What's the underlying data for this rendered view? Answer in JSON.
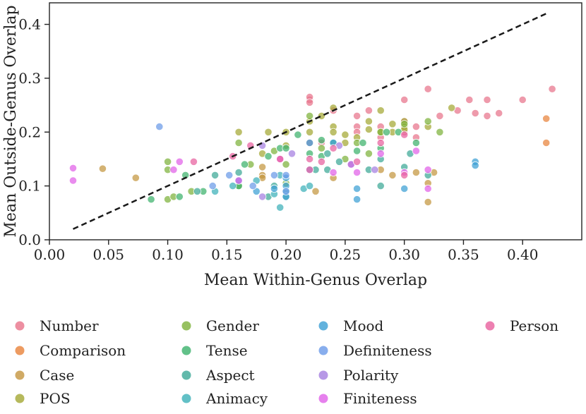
{
  "chart_data": {
    "type": "scatter",
    "title": "",
    "xlabel": "Mean Within-Genus Overlap",
    "ylabel": "Mean Outside-Genus Overlap",
    "xlim": [
      0.0,
      0.45
    ],
    "ylim": [
      0.0,
      0.44
    ],
    "xticks": [
      0.0,
      0.05,
      0.1,
      0.15,
      0.2,
      0.25,
      0.3,
      0.35,
      0.4
    ],
    "xtick_labels": [
      "0.00",
      "0.05",
      "0.10",
      "0.15",
      "0.20",
      "0.25",
      "0.30",
      "0.35",
      "0.40"
    ],
    "yticks": [
      0.0,
      0.1,
      0.2,
      0.3,
      0.4
    ],
    "ytick_labels": [
      "0.0",
      "0.1",
      "0.2",
      "0.3",
      "0.4"
    ],
    "grid": false,
    "reference_line": {
      "name": "y = x",
      "style": "dashed",
      "x": [
        0.02,
        0.42
      ],
      "y": [
        0.02,
        0.42
      ]
    },
    "legend_position": "below",
    "series": [
      {
        "name": "Number",
        "color": "#e8738a",
        "points": [
          [
            0.22,
            0.26
          ],
          [
            0.22,
            0.265
          ],
          [
            0.22,
            0.255
          ],
          [
            0.24,
            0.24
          ],
          [
            0.3,
            0.26
          ],
          [
            0.32,
            0.28
          ],
          [
            0.355,
            0.26
          ],
          [
            0.37,
            0.26
          ],
          [
            0.4,
            0.26
          ],
          [
            0.425,
            0.28
          ],
          [
            0.31,
            0.21
          ],
          [
            0.33,
            0.23
          ],
          [
            0.345,
            0.24
          ],
          [
            0.36,
            0.235
          ],
          [
            0.37,
            0.23
          ],
          [
            0.38,
            0.235
          ],
          [
            0.26,
            0.21
          ],
          [
            0.28,
            0.21
          ],
          [
            0.3,
            0.2
          ],
          [
            0.26,
            0.2
          ],
          [
            0.28,
            0.19
          ],
          [
            0.23,
            0.18
          ],
          [
            0.31,
            0.19
          ],
          [
            0.3,
            0.22
          ],
          [
            0.22,
            0.18
          ],
          [
            0.27,
            0.24
          ],
          [
            0.26,
            0.23
          ]
        ]
      },
      {
        "name": "Comparison",
        "color": "#e8823a",
        "points": [
          [
            0.42,
            0.225
          ],
          [
            0.42,
            0.18
          ]
        ]
      },
      {
        "name": "Case",
        "color": "#c4953e",
        "points": [
          [
            0.045,
            0.132
          ],
          [
            0.073,
            0.115
          ],
          [
            0.18,
            0.12
          ],
          [
            0.18,
            0.135
          ],
          [
            0.18,
            0.115
          ],
          [
            0.225,
            0.09
          ],
          [
            0.29,
            0.12
          ],
          [
            0.32,
            0.105
          ],
          [
            0.32,
            0.07
          ],
          [
            0.325,
            0.125
          ],
          [
            0.31,
            0.125
          ],
          [
            0.28,
            0.13
          ],
          [
            0.24,
            0.115
          ]
        ]
      },
      {
        "name": "POS",
        "color": "#a4a833",
        "points": [
          [
            0.16,
            0.2
          ],
          [
            0.185,
            0.2
          ],
          [
            0.2,
            0.2
          ],
          [
            0.24,
            0.245
          ],
          [
            0.24,
            0.21
          ],
          [
            0.24,
            0.2
          ],
          [
            0.27,
            0.22
          ],
          [
            0.28,
            0.24
          ],
          [
            0.3,
            0.22
          ],
          [
            0.3,
            0.21
          ],
          [
            0.28,
            0.2
          ],
          [
            0.25,
            0.195
          ],
          [
            0.22,
            0.22
          ],
          [
            0.23,
            0.23
          ],
          [
            0.29,
            0.2
          ],
          [
            0.34,
            0.245
          ],
          [
            0.32,
            0.21
          ],
          [
            0.26,
            0.19
          ],
          [
            0.22,
            0.2
          ],
          [
            0.18,
            0.16
          ],
          [
            0.2,
            0.175
          ],
          [
            0.29,
            0.215
          ],
          [
            0.3,
            0.205
          ],
          [
            0.27,
            0.205
          ],
          [
            0.25,
            0.18
          ]
        ]
      },
      {
        "name": "Gender",
        "color": "#7db23a",
        "points": [
          [
            0.1,
            0.145
          ],
          [
            0.1,
            0.13
          ],
          [
            0.1,
            0.075
          ],
          [
            0.105,
            0.08
          ],
          [
            0.12,
            0.09
          ],
          [
            0.16,
            0.1
          ],
          [
            0.16,
            0.18
          ],
          [
            0.2,
            0.14
          ],
          [
            0.2,
            0.105
          ],
          [
            0.22,
            0.23
          ],
          [
            0.23,
            0.17
          ],
          [
            0.26,
            0.18
          ],
          [
            0.28,
            0.2
          ],
          [
            0.3,
            0.215
          ],
          [
            0.32,
            0.22
          ],
          [
            0.33,
            0.2
          ],
          [
            0.17,
            0.14
          ],
          [
            0.19,
            0.165
          ],
          [
            0.25,
            0.15
          ],
          [
            0.27,
            0.16
          ]
        ]
      },
      {
        "name": "Tense",
        "color": "#3bb26b",
        "points": [
          [
            0.086,
            0.075
          ],
          [
            0.11,
            0.08
          ],
          [
            0.115,
            0.12
          ],
          [
            0.13,
            0.09
          ],
          [
            0.16,
            0.1
          ],
          [
            0.165,
            0.14
          ],
          [
            0.185,
            0.155
          ],
          [
            0.195,
            0.17
          ],
          [
            0.2,
            0.17
          ],
          [
            0.21,
            0.195
          ],
          [
            0.22,
            0.16
          ],
          [
            0.23,
            0.185
          ],
          [
            0.24,
            0.18
          ],
          [
            0.265,
            0.18
          ],
          [
            0.28,
            0.17
          ],
          [
            0.285,
            0.2
          ],
          [
            0.295,
            0.2
          ],
          [
            0.31,
            0.18
          ],
          [
            0.23,
            0.155
          ],
          [
            0.26,
            0.165
          ]
        ]
      },
      {
        "name": "Aspect",
        "color": "#3ba896",
        "points": [
          [
            0.125,
            0.09
          ],
          [
            0.14,
            0.12
          ],
          [
            0.16,
            0.125
          ],
          [
            0.185,
            0.08
          ],
          [
            0.19,
            0.1
          ],
          [
            0.2,
            0.08
          ],
          [
            0.225,
            0.13
          ],
          [
            0.235,
            0.13
          ],
          [
            0.245,
            0.145
          ],
          [
            0.27,
            0.13
          ],
          [
            0.28,
            0.1
          ],
          [
            0.3,
            0.135
          ],
          [
            0.305,
            0.16
          ],
          [
            0.32,
            0.12
          ],
          [
            0.235,
            0.16
          ],
          [
            0.28,
            0.15
          ]
        ]
      },
      {
        "name": "Animacy",
        "color": "#3bb0b8",
        "points": [
          [
            0.14,
            0.09
          ],
          [
            0.155,
            0.1
          ],
          [
            0.19,
            0.085
          ],
          [
            0.195,
            0.06
          ],
          [
            0.2,
            0.09
          ],
          [
            0.215,
            0.095
          ],
          [
            0.22,
            0.1
          ],
          [
            0.255,
            0.14
          ],
          [
            0.195,
            0.12
          ],
          [
            0.175,
            0.11
          ]
        ]
      },
      {
        "name": "Mood",
        "color": "#3b9fd4",
        "points": [
          [
            0.16,
            0.11
          ],
          [
            0.175,
            0.09
          ],
          [
            0.19,
            0.095
          ],
          [
            0.2,
            0.115
          ],
          [
            0.2,
            0.08
          ],
          [
            0.26,
            0.095
          ],
          [
            0.26,
            0.075
          ],
          [
            0.3,
            0.095
          ],
          [
            0.36,
            0.145
          ],
          [
            0.36,
            0.138
          ],
          [
            0.2,
            0.1
          ],
          [
            0.22,
            0.18
          ],
          [
            0.24,
            0.18
          ]
        ]
      },
      {
        "name": "Definiteness",
        "color": "#6a9ae8",
        "points": [
          [
            0.093,
            0.21
          ],
          [
            0.138,
            0.1
          ],
          [
            0.152,
            0.12
          ],
          [
            0.172,
            0.1
          ],
          [
            0.19,
            0.12
          ],
          [
            0.2,
            0.12
          ],
          [
            0.2,
            0.09
          ],
          [
            0.22,
            0.13
          ]
        ]
      },
      {
        "name": "Polarity",
        "color": "#a57ee0",
        "points": [
          [
            0.18,
            0.08
          ],
          [
            0.18,
            0.175
          ],
          [
            0.205,
            0.16
          ],
          [
            0.245,
            0.175
          ],
          [
            0.275,
            0.13
          ]
        ]
      },
      {
        "name": "Finiteness",
        "color": "#e060e8",
        "points": [
          [
            0.02,
            0.133
          ],
          [
            0.02,
            0.11
          ],
          [
            0.105,
            0.13
          ],
          [
            0.11,
            0.145
          ],
          [
            0.16,
            0.11
          ],
          [
            0.195,
            0.15
          ],
          [
            0.24,
            0.125
          ],
          [
            0.26,
            0.125
          ],
          [
            0.28,
            0.16
          ],
          [
            0.3,
            0.125
          ],
          [
            0.32,
            0.095
          ],
          [
            0.32,
            0.13
          ],
          [
            0.255,
            0.14
          ],
          [
            0.31,
            0.165
          ]
        ]
      },
      {
        "name": "Person",
        "color": "#e8609e",
        "points": [
          [
            0.122,
            0.145
          ],
          [
            0.155,
            0.155
          ],
          [
            0.17,
            0.175
          ],
          [
            0.195,
            0.15
          ],
          [
            0.22,
            0.15
          ],
          [
            0.24,
            0.17
          ],
          [
            0.23,
            0.145
          ],
          [
            0.26,
            0.145
          ],
          [
            0.3,
            0.12
          ],
          [
            0.22,
            0.13
          ],
          [
            0.28,
            0.18
          ],
          [
            0.3,
            0.195
          ]
        ]
      }
    ]
  }
}
